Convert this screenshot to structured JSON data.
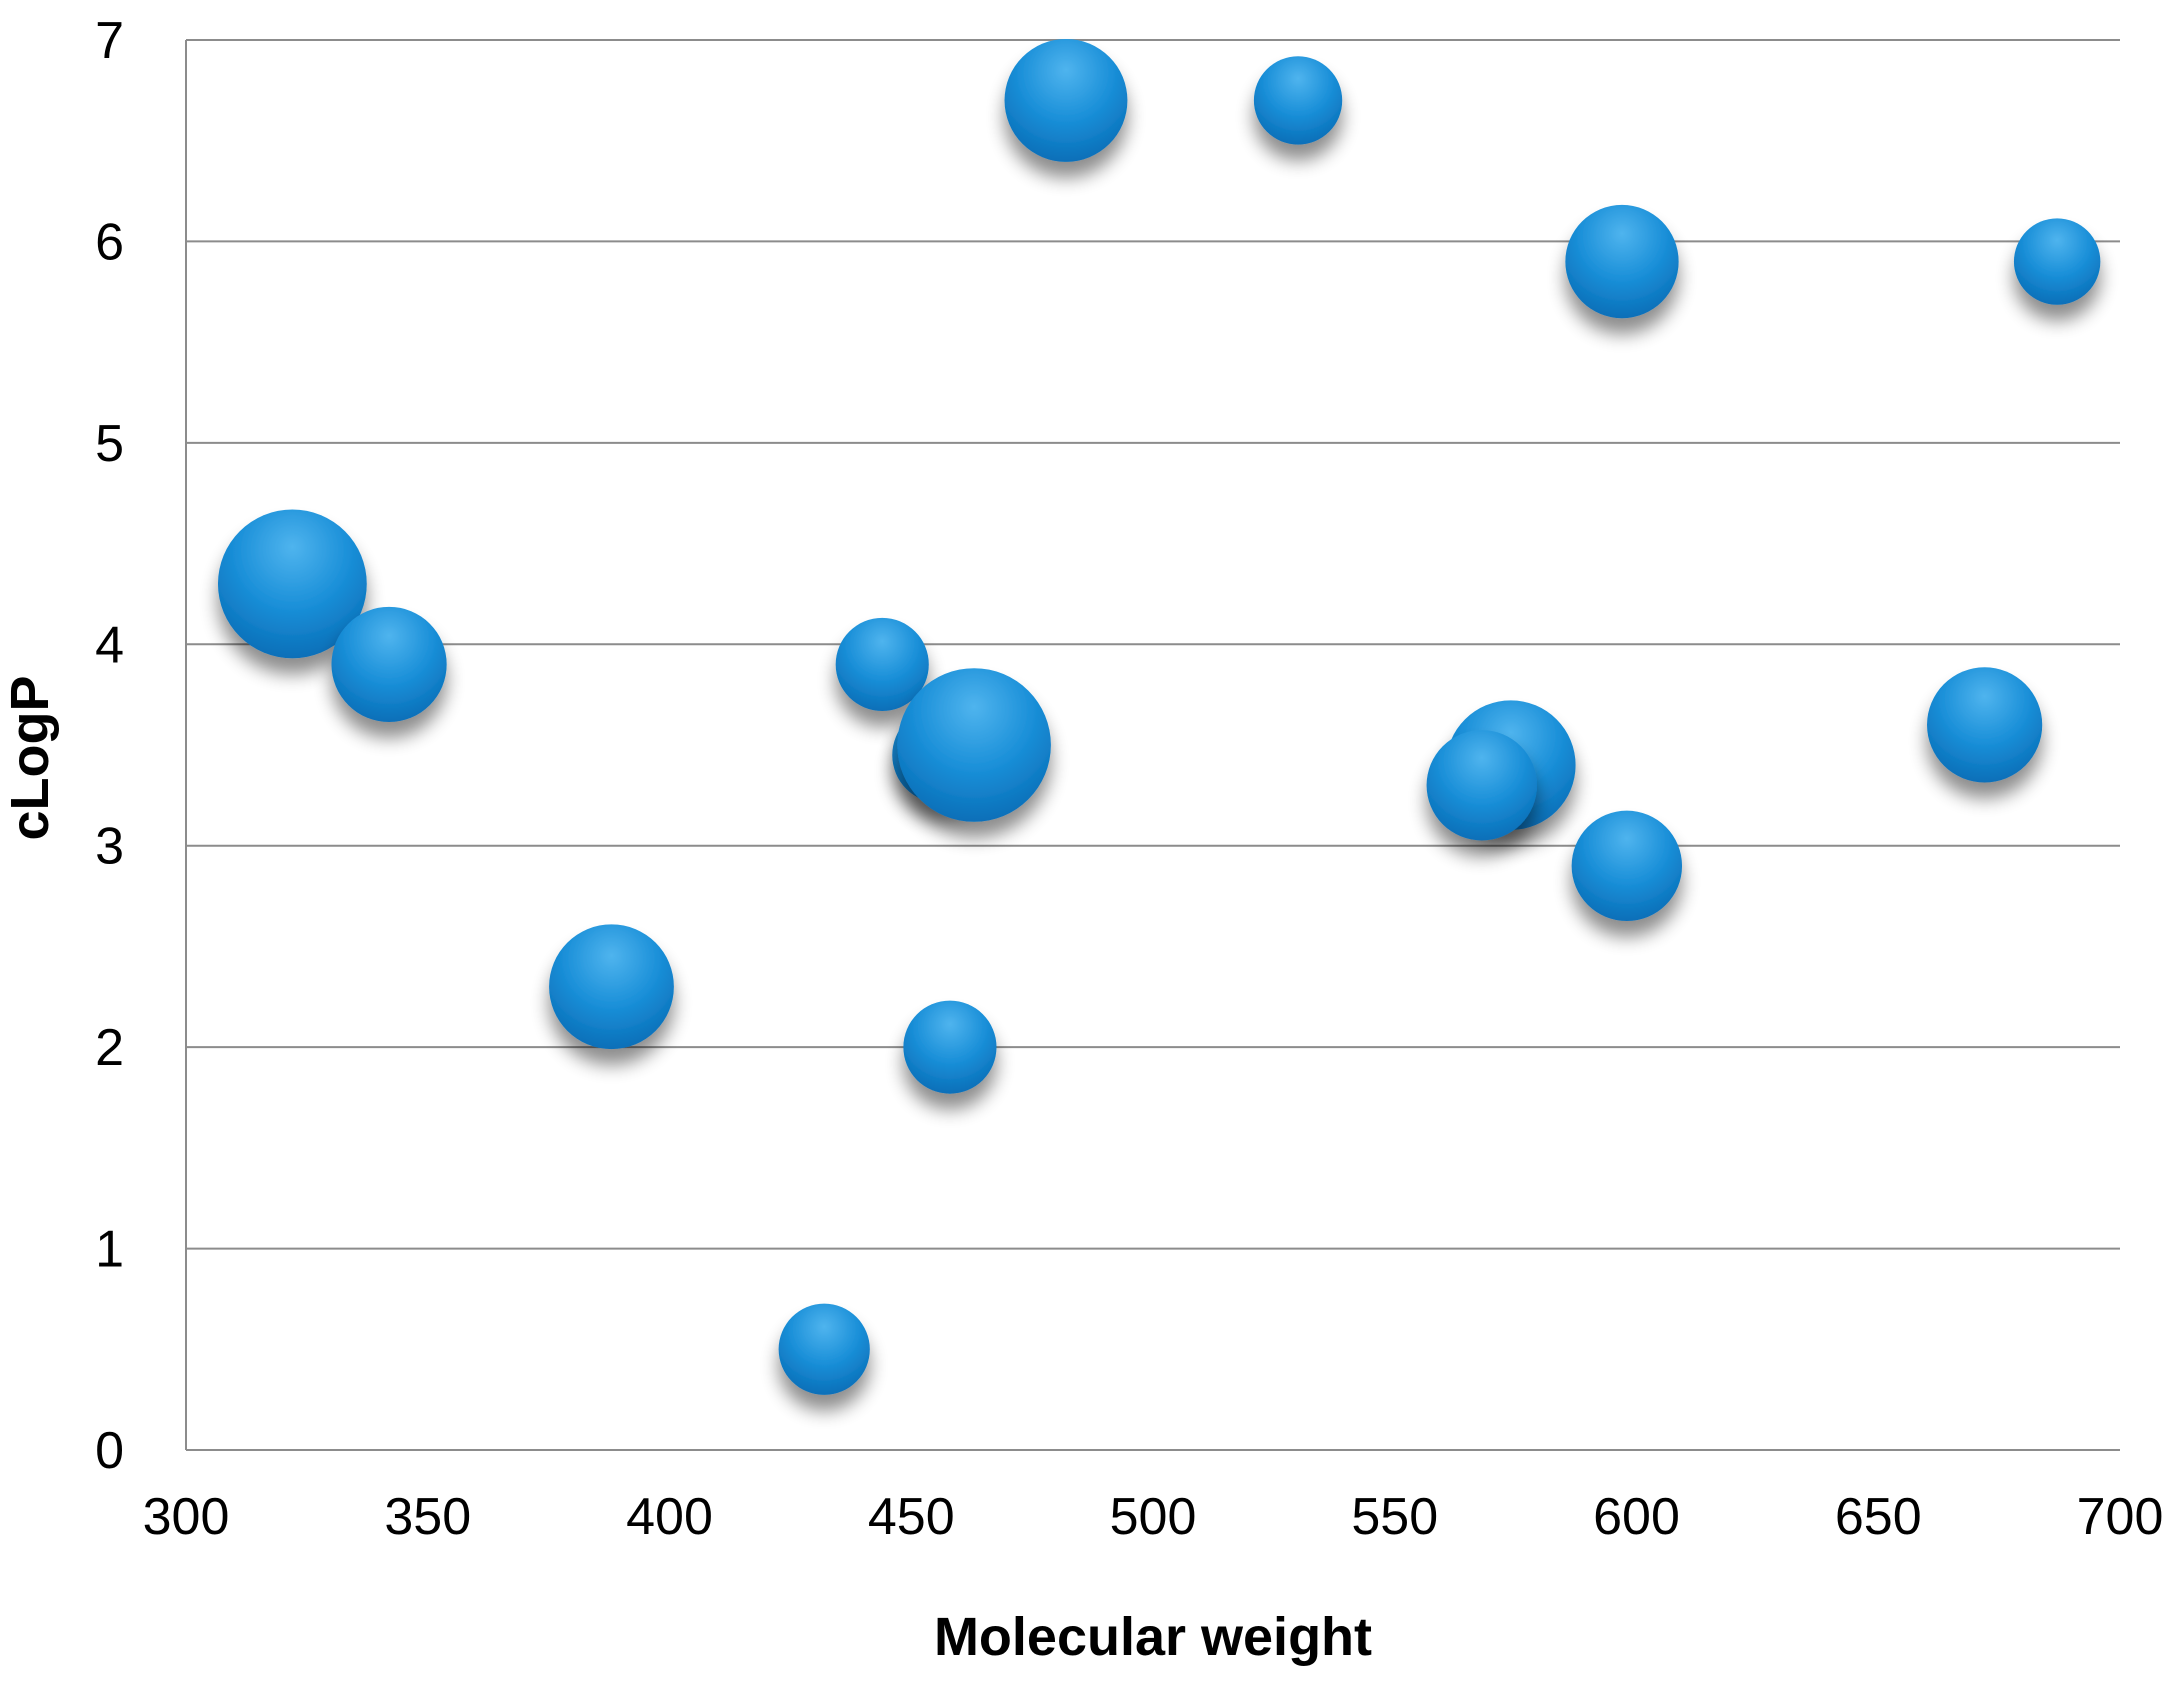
{
  "chart_data": {
    "type": "scatter",
    "title": "",
    "xlabel": "Molecular weight",
    "ylabel": "cLogP",
    "xlim": [
      300,
      700
    ],
    "ylim": [
      0,
      7
    ],
    "x_ticks": [
      300,
      350,
      400,
      450,
      500,
      550,
      600,
      650,
      700
    ],
    "y_ticks": [
      0,
      1,
      2,
      3,
      4,
      5,
      6,
      7
    ],
    "grid": true,
    "legend": "none",
    "marker_color": "#1a8fd8",
    "marker_color_light": "#4fb4ee",
    "marker_color_dark": "#0a6fb8",
    "series": [
      {
        "points": [
          {
            "x": 322,
            "y": 4.3,
            "size": 1.55
          },
          {
            "x": 342,
            "y": 3.9,
            "size": 1.2
          },
          {
            "x": 388,
            "y": 2.3,
            "size": 1.3
          },
          {
            "x": 432,
            "y": 0.5,
            "size": 0.95
          },
          {
            "x": 444,
            "y": 3.9,
            "size": 0.97
          },
          {
            "x": 458,
            "y": 2.0,
            "size": 0.97
          },
          {
            "x": 456,
            "y": 3.45,
            "size": 1.0
          },
          {
            "x": 463,
            "y": 3.5,
            "size": 1.6
          },
          {
            "x": 482,
            "y": 6.7,
            "size": 1.28
          },
          {
            "x": 530,
            "y": 6.7,
            "size": 0.92
          },
          {
            "x": 574,
            "y": 3.4,
            "size": 1.35
          },
          {
            "x": 568,
            "y": 3.3,
            "size": 1.15
          },
          {
            "x": 597,
            "y": 5.9,
            "size": 1.18
          },
          {
            "x": 598,
            "y": 2.9,
            "size": 1.15
          },
          {
            "x": 672,
            "y": 3.6,
            "size": 1.2
          },
          {
            "x": 687,
            "y": 5.9,
            "size": 0.9
          }
        ]
      }
    ]
  }
}
